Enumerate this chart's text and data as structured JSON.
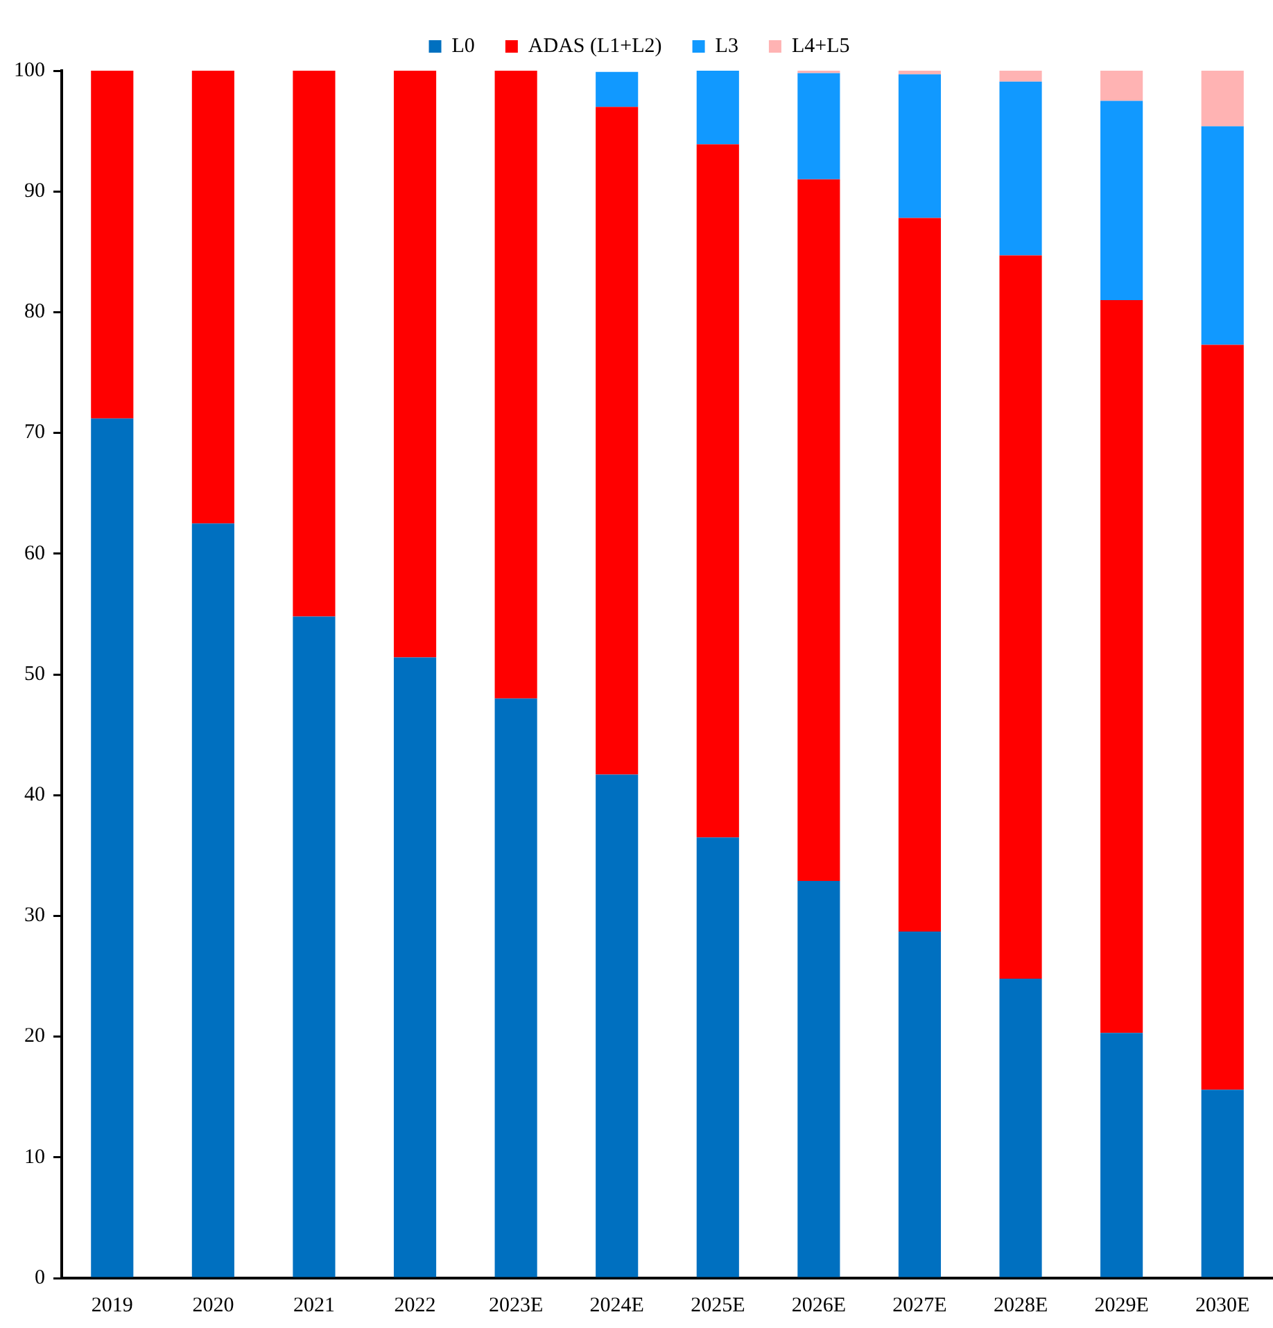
{
  "chart_data": {
    "type": "bar",
    "stacked": true,
    "categories": [
      "2019",
      "2020",
      "2021",
      "2022",
      "2023E",
      "2024E",
      "2025E",
      "2026E",
      "2027E",
      "2028E",
      "2029E",
      "2030E"
    ],
    "series": [
      {
        "name": "L0",
        "color": "#0070c0",
        "values": [
          71.2,
          62.5,
          54.8,
          51.4,
          48.0,
          41.7,
          36.5,
          32.9,
          28.7,
          24.8,
          20.3,
          15.6
        ]
      },
      {
        "name": "ADAS (L1+L2)",
        "color": "#ff0000",
        "values": [
          28.8,
          37.5,
          45.2,
          48.6,
          52.0,
          55.3,
          57.4,
          58.1,
          59.1,
          59.9,
          60.7,
          61.7
        ]
      },
      {
        "name": "L3",
        "color": "#1199ff",
        "values": [
          0,
          0,
          0,
          0,
          0,
          2.9,
          6.1,
          8.8,
          11.9,
          14.4,
          16.5,
          18.1
        ]
      },
      {
        "name": "L4+L5",
        "color": "#ffb3b3",
        "values": [
          0,
          0,
          0,
          0,
          0,
          0,
          0,
          0.2,
          0.3,
          0.9,
          2.5,
          4.6
        ]
      }
    ],
    "ylim": [
      0,
      100
    ],
    "yticks": [
      0,
      10,
      20,
      30,
      40,
      50,
      60,
      70,
      80,
      90,
      100
    ],
    "grid": false,
    "legend": "top"
  }
}
